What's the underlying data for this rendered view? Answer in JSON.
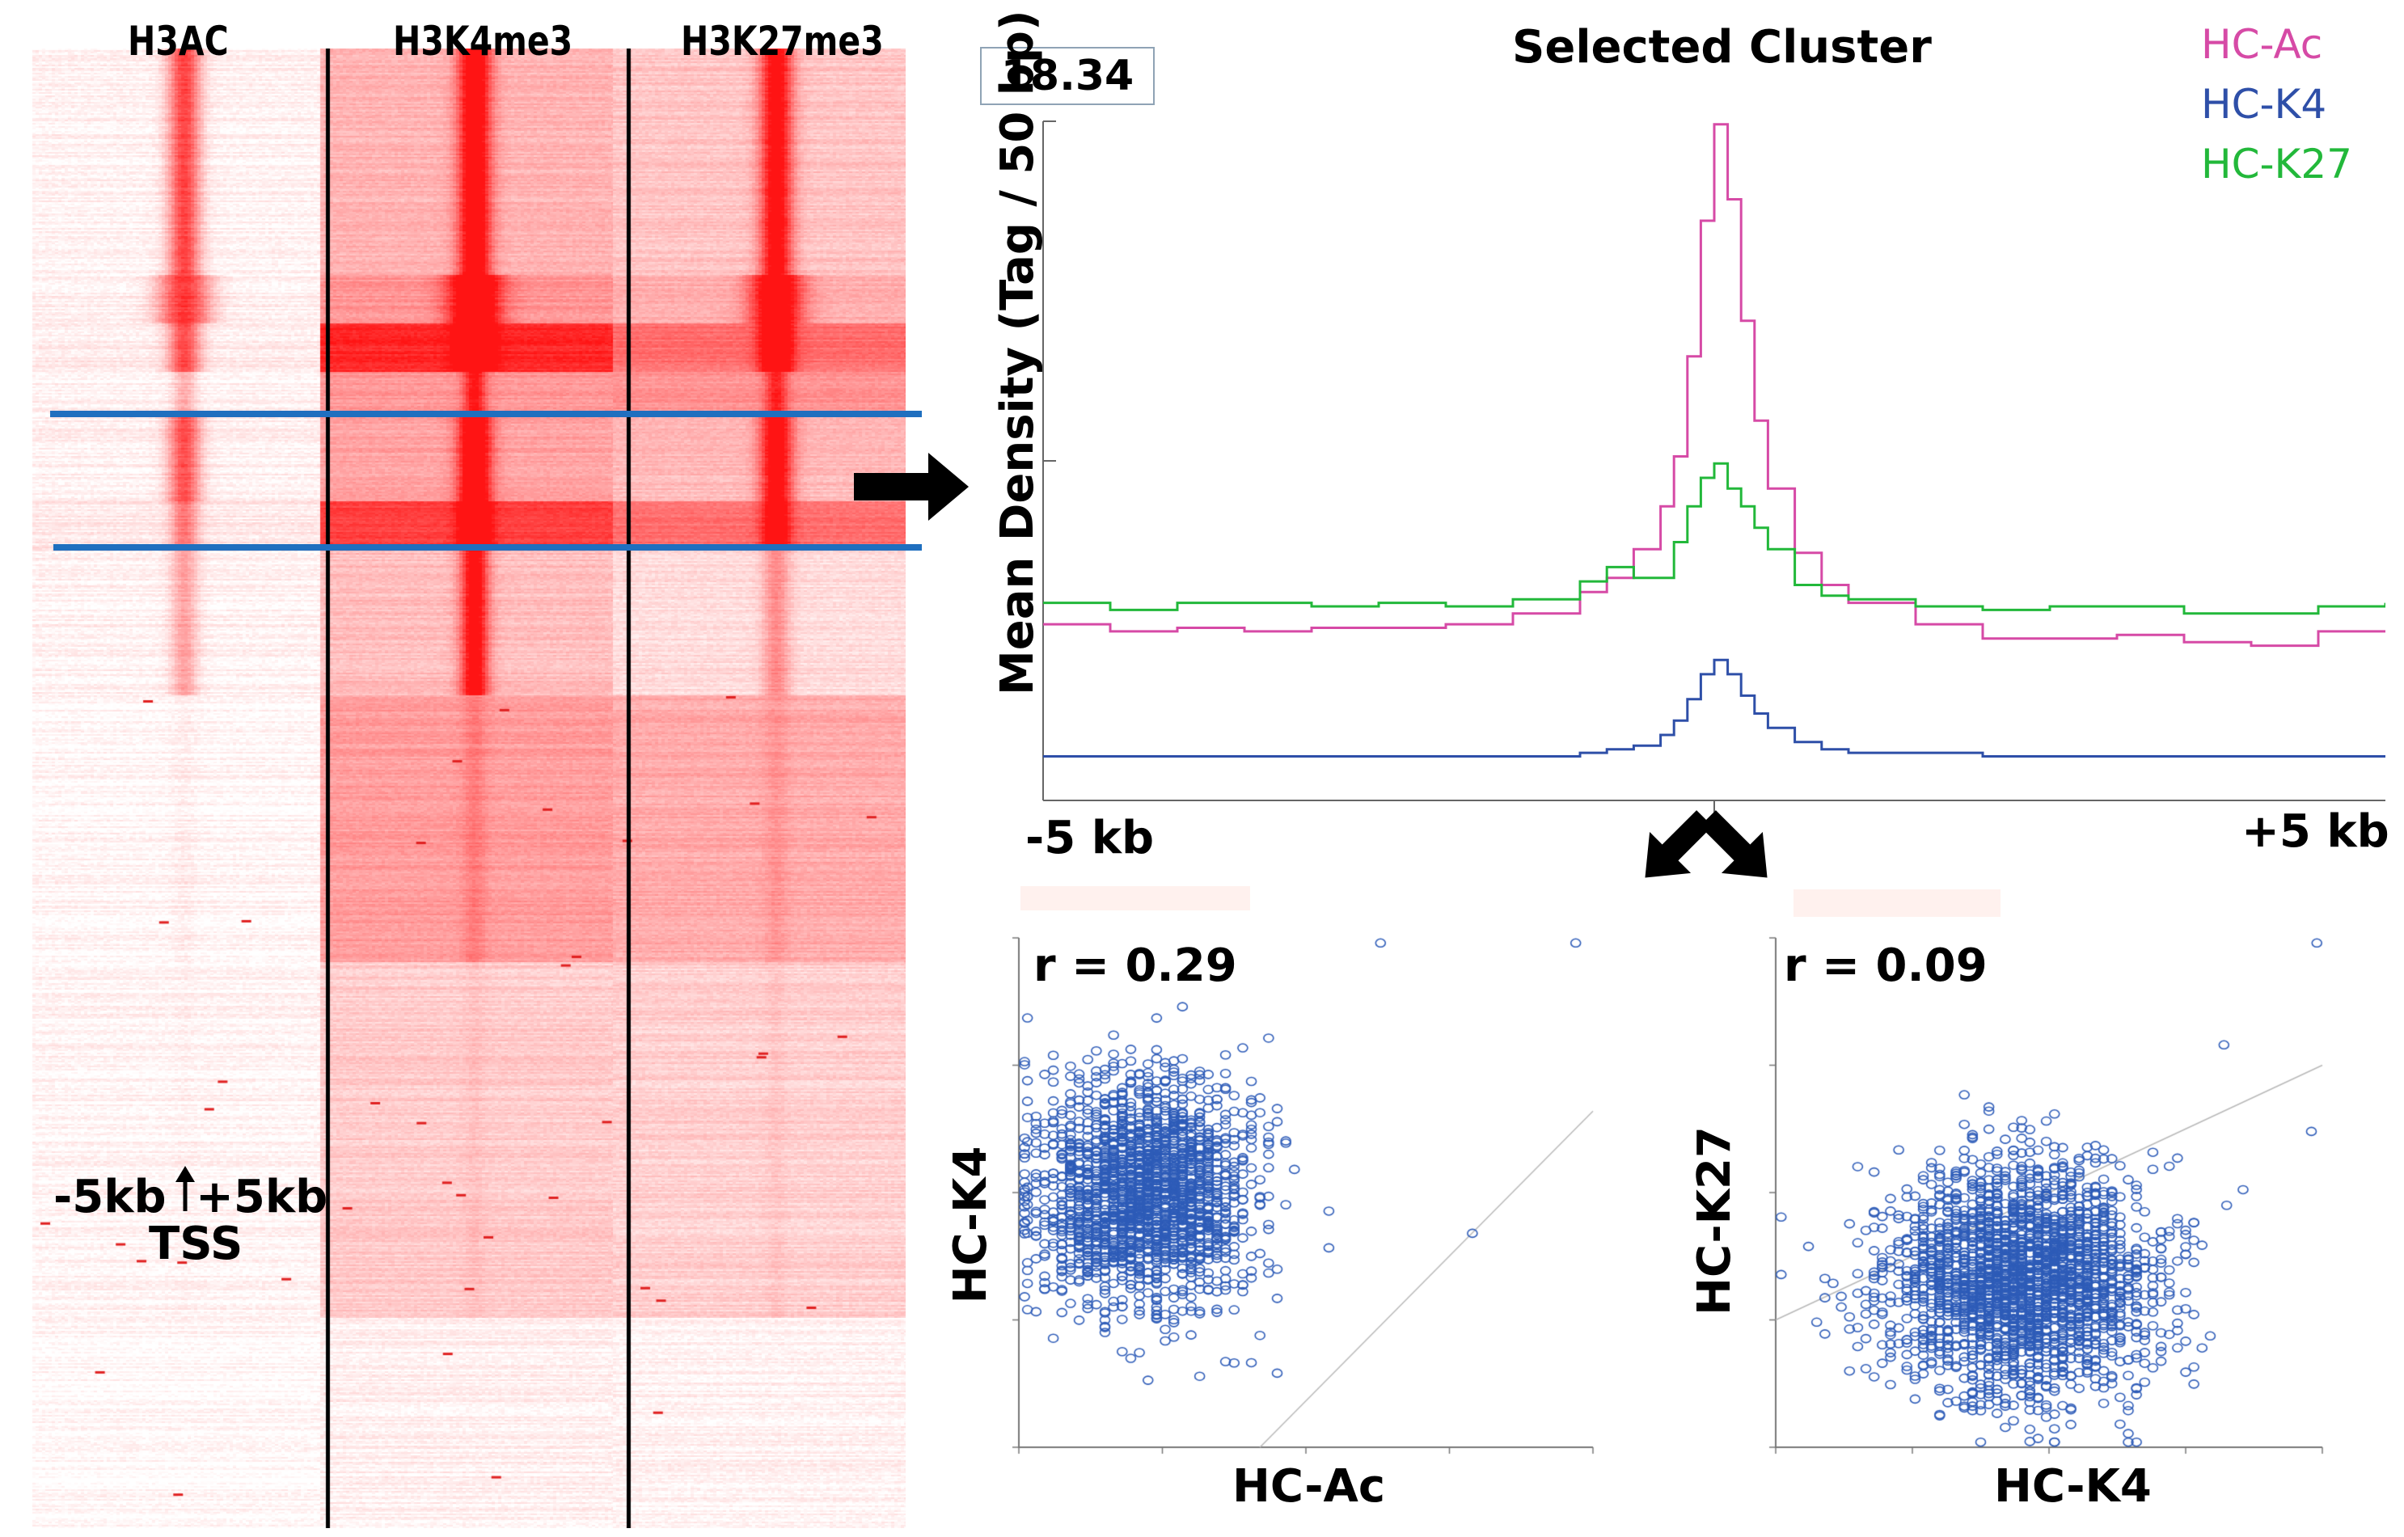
{
  "heatmap": {
    "columns": [
      "H3AC",
      "H3K4me3",
      "H3K27me3"
    ],
    "tss_annotation": {
      "line1_left": "-5kb",
      "line1_right": "+5kb",
      "line2": "TSS"
    }
  },
  "profile_panel": {
    "title": "Selected Cluster",
    "max_value_box": "18.34",
    "colors": {
      "HC-Ac": "#d64aa6",
      "HC-K4": "#2e4fa8",
      "HC-K27": "#22b83a",
      "arrow": "#000000",
      "cluster_line": "#1f6fbf"
    }
  },
  "chart_data": [
    {
      "type": "line",
      "title": "Selected Cluster",
      "ylabel": "Mean Density (Tag / 50 bp)",
      "xlabel": "",
      "x_tick_labels": [
        "-5 kb",
        "+5 kb"
      ],
      "x": [
        -5000,
        -4500,
        -4000,
        -3500,
        -3000,
        -2500,
        -2000,
        -1500,
        -1000,
        -800,
        -600,
        -400,
        -300,
        -200,
        -100,
        0,
        100,
        200,
        300,
        400,
        600,
        800,
        1000,
        1500,
        2000,
        2500,
        3000,
        3500,
        4000,
        4500,
        5000
      ],
      "ylim": [
        0,
        18.34
      ],
      "series": [
        {
          "name": "HC-Ac",
          "color": "#d64aa6",
          "values": [
            4.3,
            4.1,
            4.2,
            4.1,
            4.2,
            4.2,
            4.3,
            4.6,
            5.2,
            5.6,
            6.4,
            7.6,
            9.0,
            11.8,
            15.6,
            18.3,
            16.2,
            12.8,
            10.0,
            8.1,
            6.3,
            5.4,
            4.9,
            4.3,
            3.9,
            3.9,
            4.0,
            3.8,
            3.7,
            4.1,
            4.1
          ]
        },
        {
          "name": "HC-K4",
          "color": "#2e4fa8",
          "values": [
            0.6,
            0.6,
            0.6,
            0.6,
            0.6,
            0.6,
            0.6,
            0.6,
            0.7,
            0.8,
            0.9,
            1.2,
            1.6,
            2.2,
            2.9,
            3.3,
            2.9,
            2.3,
            1.8,
            1.4,
            1.0,
            0.8,
            0.7,
            0.7,
            0.6,
            0.6,
            0.6,
            0.6,
            0.6,
            0.6,
            0.6
          ]
        },
        {
          "name": "HC-K27",
          "color": "#22b83a",
          "values": [
            4.9,
            4.7,
            4.9,
            4.9,
            4.8,
            4.9,
            4.8,
            5.0,
            5.5,
            5.9,
            5.6,
            5.6,
            6.6,
            7.6,
            8.4,
            8.8,
            8.1,
            7.6,
            7.0,
            6.4,
            5.4,
            5.1,
            5.0,
            4.8,
            4.7,
            4.8,
            4.8,
            4.6,
            4.6,
            4.8,
            4.9
          ]
        }
      ],
      "legend": "top-right"
    },
    {
      "type": "scatter",
      "annotation": "r = 0.29",
      "xlabel": "HC-Ac",
      "ylabel": "HC-K4",
      "xlim": [
        0,
        100
      ],
      "ylim": [
        0,
        100
      ],
      "trend_line": {
        "from": [
          42,
          0
        ],
        "to": [
          100,
          66
        ]
      },
      "marker_color": "#2e5cb8",
      "points_summary": "dense cluster centered near (22, 50), roughly 2000 points",
      "outliers": [
        [
          63,
          99
        ],
        [
          97,
          99
        ],
        [
          79,
          42
        ]
      ]
    },
    {
      "type": "scatter",
      "annotation": "r = 0.09",
      "xlabel": "HC-K4",
      "ylabel": "HC-K27",
      "xlim": [
        0,
        100
      ],
      "ylim": [
        0,
        100
      ],
      "trend_line": {
        "from": [
          0,
          25
        ],
        "to": [
          100,
          75
        ]
      },
      "marker_color": "#2e5cb8",
      "points_summary": "dense cluster centered near (45, 33), roughly 2400 points",
      "outliers": [
        [
          99,
          99
        ],
        [
          82,
          79
        ],
        [
          98,
          62
        ]
      ]
    }
  ]
}
